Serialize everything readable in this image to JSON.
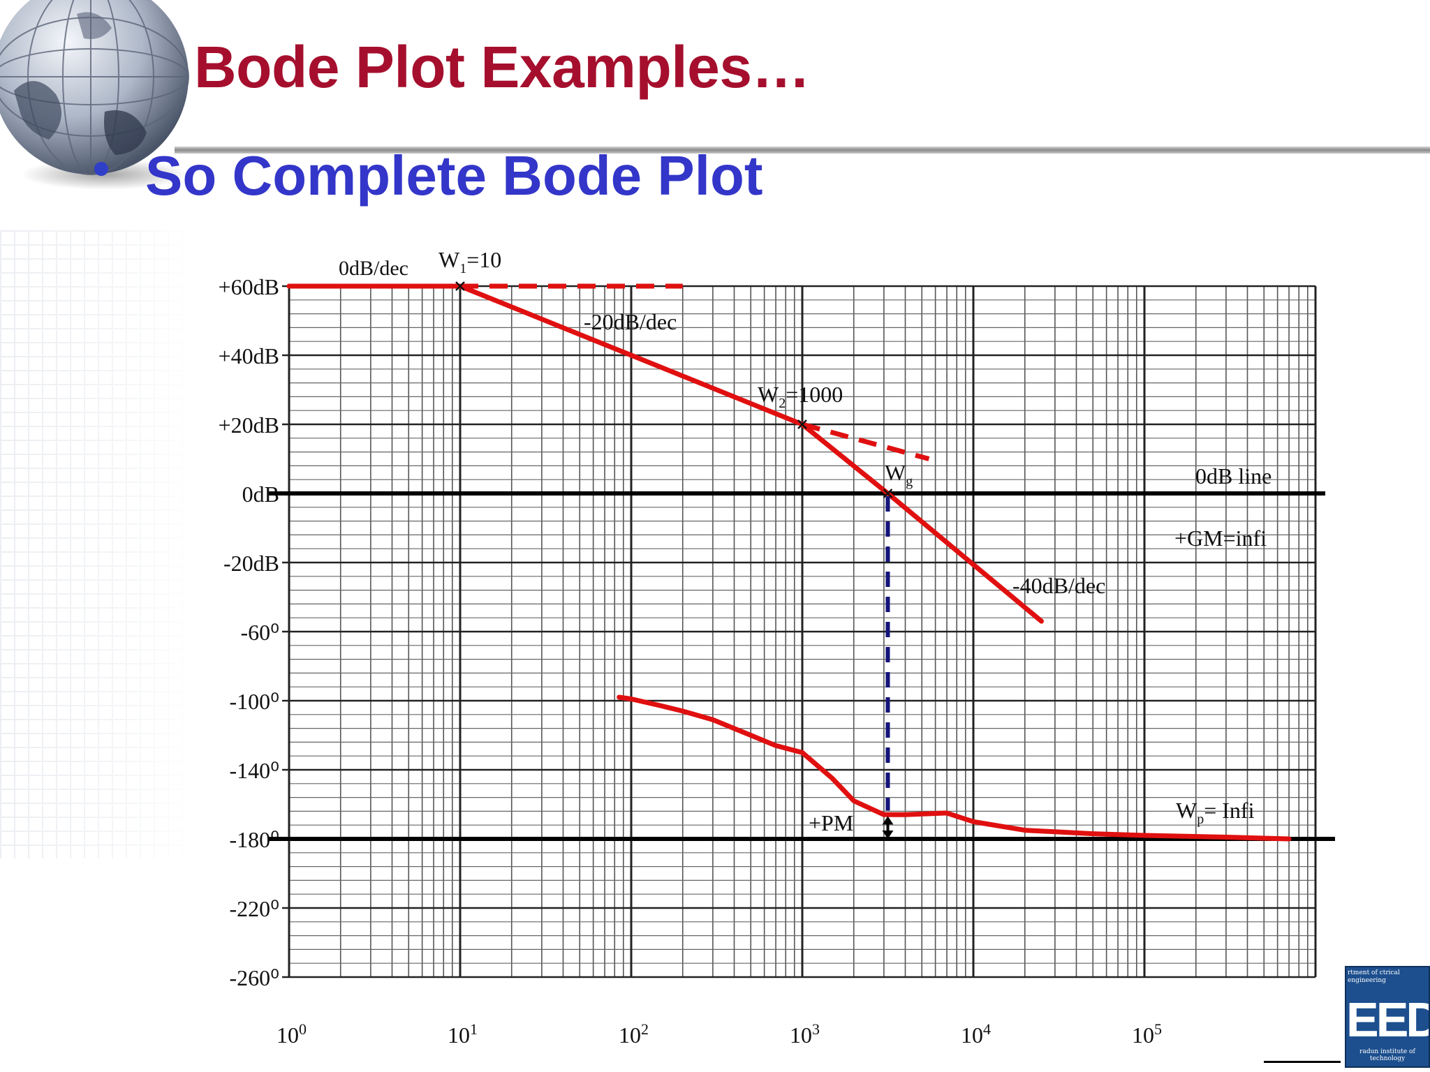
{
  "slide": {
    "title": "Bode Plot Examples…",
    "bullet": "So Complete Bode Plot"
  },
  "logo": {
    "top_text": "rtment of ctrical engineering",
    "mark": "EED",
    "bottom_text": "radun institute of technology"
  },
  "colors": {
    "title": "#a50f2d",
    "bullet": "#3336c9",
    "curve": "#e01010",
    "pm_line": "#14147a",
    "axis_line": "#000000",
    "grid": "#333333"
  },
  "chart_data": {
    "type": "line",
    "x_scale": "log",
    "xlim": [
      1,
      1000000
    ],
    "x_tick_labels": [
      "10^0",
      "10^1",
      "10^2",
      "10^3",
      "10^4",
      "10^5"
    ],
    "x_tick_values": [
      1,
      10,
      100,
      1000,
      10000,
      100000
    ],
    "y_tick_labels": [
      "+60dB",
      "+40dB",
      "+20dB",
      "0dB",
      "-20dB",
      "-60⁰",
      "-100⁰",
      "-140⁰",
      "-180⁰",
      "-220⁰",
      "-260⁰"
    ],
    "grid": true,
    "series": [
      {
        "style": "solid",
        "points": [
          [
            1,
            60
          ],
          [
            10,
            60
          ],
          [
            1000,
            20
          ],
          [
            3162,
            0
          ],
          [
            25000,
            -37
          ]
        ]
      },
      {
        "style": "dashed",
        "points": [
          [
            10,
            60
          ],
          [
            200,
            60
          ]
        ]
      },
      {
        "style": "dashed",
        "points": [
          [
            1000,
            20
          ],
          [
            5500,
            10
          ]
        ]
      },
      {
        "style": "solid",
        "points": [
          [
            85,
            -98
          ],
          [
            100,
            -99
          ],
          [
            150,
            -103
          ],
          [
            200,
            -106
          ],
          [
            300,
            -111
          ],
          [
            500,
            -120
          ],
          [
            700,
            -126
          ],
          [
            1000,
            -130
          ],
          [
            1500,
            -145
          ],
          [
            2000,
            -158
          ],
          [
            3000,
            -166
          ],
          [
            4000,
            -166
          ],
          [
            7000,
            -165
          ],
          [
            10000,
            -170
          ],
          [
            20000,
            -175
          ],
          [
            50000,
            -177
          ],
          [
            100000,
            -178
          ],
          [
            300000,
            -179
          ],
          [
            700000,
            -180
          ]
        ]
      }
    ],
    "reference_lines": [
      {
        "label": "0dB line",
        "y": 0
      },
      {
        "y": -180
      }
    ],
    "annotations": {
      "slope0": "0dB/dec",
      "w1": "W1=10",
      "slope1": "-20dB/dec",
      "w2": "W2=1000",
      "wg": "Wg",
      "zero_line": "0dB line",
      "gm": "+GM=infi",
      "slope2": "-40dB/dec",
      "pm": "+PM",
      "wp": "Wp= Infi"
    }
  }
}
